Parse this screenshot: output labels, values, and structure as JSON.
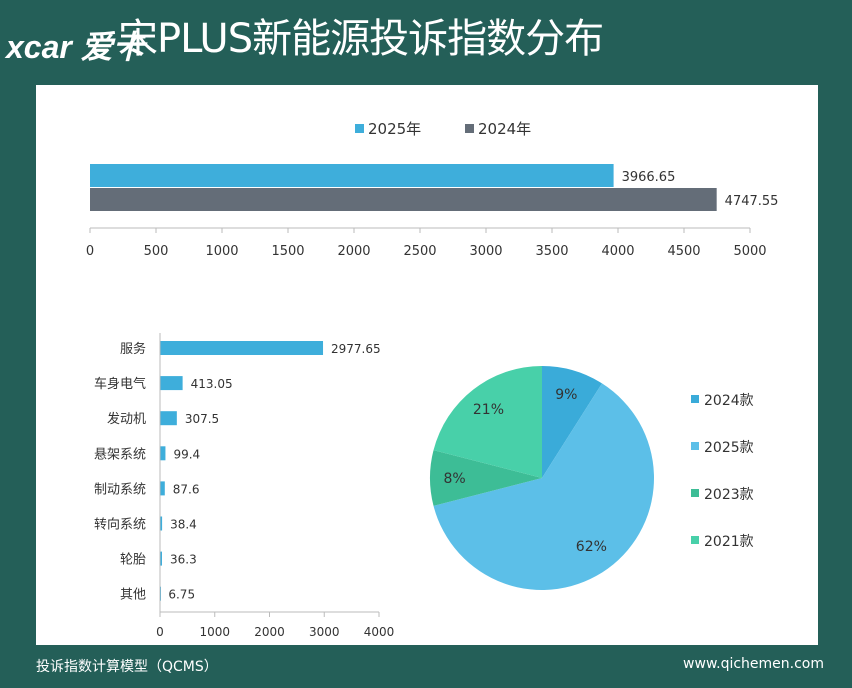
{
  "title": "宋PLUS新能源投诉指数分布",
  "watermark": "xcar 爱卡",
  "footer": {
    "left": "投诉指数计算模型（QCMS）",
    "right": "www.qichemen.com"
  },
  "chart_data": [
    {
      "type": "bar",
      "orientation": "horizontal",
      "series": [
        {
          "name": "2025年",
          "values": [
            3966.65
          ],
          "labels": [
            "3966.65"
          ],
          "color": "#3eaedb"
        },
        {
          "name": "2024年",
          "values": [
            4747.55
          ],
          "labels": [
            "4747.55"
          ],
          "color": "#646d78"
        }
      ],
      "xlim": [
        0,
        5000
      ],
      "ticks": [
        "0",
        "500",
        "1000",
        "1500",
        "2000",
        "2500",
        "3000",
        "3500",
        "4000",
        "4500",
        "5000"
      ],
      "legend": "top"
    },
    {
      "type": "bar",
      "orientation": "horizontal",
      "categories": [
        "服务",
        "车身电气",
        "发动机",
        "悬架系统",
        "制动系统",
        "转向系统",
        "轮胎",
        "其他"
      ],
      "values": [
        2977.65,
        413.05,
        307.5,
        99.4,
        87.6,
        38.4,
        36.3,
        6.75
      ],
      "labels": [
        "2977.65",
        "413.05",
        "307.5",
        "99.4",
        "87.6",
        "38.4",
        "36.3",
        "6.75"
      ],
      "xlim": [
        0,
        4000
      ],
      "ticks": [
        "0",
        "1000",
        "2000",
        "3000",
        "4000"
      ],
      "color": "#3eaedb"
    },
    {
      "type": "pie",
      "categories": [
        "2024款",
        "2025款",
        "2023款",
        "2021款"
      ],
      "values": [
        9,
        62,
        8,
        21
      ],
      "labels": [
        "9%",
        "62%",
        "8%",
        "21%"
      ],
      "colors": [
        "#3aabd9",
        "#5cbfe8",
        "#3dbd96",
        "#48d0a9"
      ],
      "legend": "right"
    }
  ]
}
